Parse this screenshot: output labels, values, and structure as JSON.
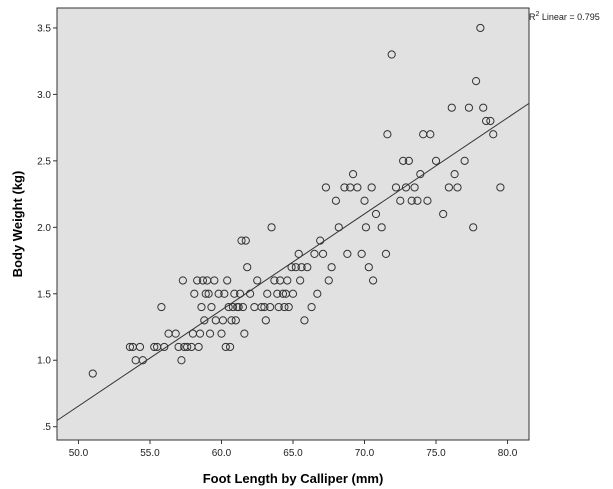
{
  "chart_data": {
    "type": "scatter",
    "title": "",
    "xlabel": "Foot Length by Calliper (mm)",
    "ylabel": "Body Weight (kg)",
    "xlim": [
      48.5,
      81.5
    ],
    "ylim": [
      0.4,
      3.65
    ],
    "x_ticks": [
      50.0,
      55.0,
      60.0,
      65.0,
      70.0,
      75.0,
      80.0
    ],
    "x_tick_labels": [
      "50.0",
      "55.0",
      "60.0",
      "65.0",
      "70.0",
      "75.0",
      "80.0"
    ],
    "y_ticks": [
      0.5,
      1.0,
      1.5,
      2.0,
      2.5,
      3.0,
      3.5
    ],
    "y_tick_labels": [
      ".5",
      "1.0",
      "1.5",
      "2.0",
      "2.5",
      "3.0",
      "3.5"
    ],
    "grid": false,
    "plot_background": "#e1e1e1",
    "marker_color": "#333333",
    "fit_line": {
      "label": "R² Linear = 0.795",
      "r2_prefix": "R",
      "r2_superscript": "2",
      "r2_suffix": " Linear = 0.795",
      "slope": 0.0723,
      "intercept": -2.96,
      "x_range": [
        48.5,
        81.5
      ]
    },
    "points": [
      [
        51.0,
        0.9
      ],
      [
        53.6,
        1.1
      ],
      [
        53.8,
        1.1
      ],
      [
        54.0,
        1.0
      ],
      [
        54.3,
        1.1
      ],
      [
        54.5,
        1.0
      ],
      [
        55.3,
        1.1
      ],
      [
        55.5,
        1.1
      ],
      [
        55.8,
        1.4
      ],
      [
        56.0,
        1.1
      ],
      [
        56.3,
        1.2
      ],
      [
        56.8,
        1.2
      ],
      [
        57.0,
        1.1
      ],
      [
        57.2,
        1.0
      ],
      [
        57.3,
        1.6
      ],
      [
        57.4,
        1.1
      ],
      [
        57.6,
        1.1
      ],
      [
        57.9,
        1.1
      ],
      [
        58.0,
        1.2
      ],
      [
        58.1,
        1.5
      ],
      [
        58.3,
        1.6
      ],
      [
        58.4,
        1.1
      ],
      [
        58.5,
        1.2
      ],
      [
        58.6,
        1.4
      ],
      [
        58.7,
        1.6
      ],
      [
        58.8,
        1.3
      ],
      [
        58.9,
        1.5
      ],
      [
        59.0,
        1.6
      ],
      [
        59.1,
        1.5
      ],
      [
        59.2,
        1.2
      ],
      [
        59.3,
        1.4
      ],
      [
        59.5,
        1.6
      ],
      [
        59.6,
        1.3
      ],
      [
        59.8,
        1.5
      ],
      [
        60.0,
        1.2
      ],
      [
        60.1,
        1.3
      ],
      [
        60.2,
        1.5
      ],
      [
        60.3,
        1.1
      ],
      [
        60.4,
        1.6
      ],
      [
        60.5,
        1.4
      ],
      [
        60.6,
        1.1
      ],
      [
        60.7,
        1.3
      ],
      [
        60.8,
        1.4
      ],
      [
        60.9,
        1.5
      ],
      [
        61.0,
        1.3
      ],
      [
        61.1,
        1.4
      ],
      [
        61.2,
        1.4
      ],
      [
        61.3,
        1.5
      ],
      [
        61.4,
        1.9
      ],
      [
        61.5,
        1.4
      ],
      [
        61.6,
        1.2
      ],
      [
        61.7,
        1.9
      ],
      [
        61.8,
        1.7
      ],
      [
        62.0,
        1.5
      ],
      [
        62.3,
        1.4
      ],
      [
        62.5,
        1.6
      ],
      [
        62.8,
        1.4
      ],
      [
        63.0,
        1.4
      ],
      [
        63.1,
        1.3
      ],
      [
        63.2,
        1.5
      ],
      [
        63.4,
        1.4
      ],
      [
        63.5,
        2.0
      ],
      [
        63.7,
        1.6
      ],
      [
        63.9,
        1.5
      ],
      [
        64.0,
        1.4
      ],
      [
        64.1,
        1.6
      ],
      [
        64.3,
        1.5
      ],
      [
        64.4,
        1.4
      ],
      [
        64.5,
        1.5
      ],
      [
        64.6,
        1.6
      ],
      [
        64.7,
        1.4
      ],
      [
        64.9,
        1.7
      ],
      [
        65.0,
        1.5
      ],
      [
        65.2,
        1.7
      ],
      [
        65.4,
        1.8
      ],
      [
        65.5,
        1.6
      ],
      [
        65.6,
        1.7
      ],
      [
        65.8,
        1.3
      ],
      [
        66.0,
        1.7
      ],
      [
        66.3,
        1.4
      ],
      [
        66.5,
        1.8
      ],
      [
        66.7,
        1.5
      ],
      [
        66.9,
        1.9
      ],
      [
        67.1,
        1.8
      ],
      [
        67.3,
        2.3
      ],
      [
        67.5,
        1.6
      ],
      [
        67.7,
        1.7
      ],
      [
        68.0,
        2.2
      ],
      [
        68.2,
        2.0
      ],
      [
        68.6,
        2.3
      ],
      [
        68.8,
        1.8
      ],
      [
        69.0,
        2.3
      ],
      [
        69.2,
        2.4
      ],
      [
        69.5,
        2.3
      ],
      [
        69.8,
        1.8
      ],
      [
        70.0,
        2.2
      ],
      [
        70.1,
        2.0
      ],
      [
        70.3,
        1.7
      ],
      [
        70.5,
        2.3
      ],
      [
        70.6,
        1.6
      ],
      [
        70.8,
        2.1
      ],
      [
        71.2,
        2.0
      ],
      [
        71.5,
        1.8
      ],
      [
        71.6,
        2.7
      ],
      [
        71.9,
        3.3
      ],
      [
        72.2,
        2.3
      ],
      [
        72.5,
        2.2
      ],
      [
        72.7,
        2.5
      ],
      [
        72.9,
        2.3
      ],
      [
        73.1,
        2.5
      ],
      [
        73.3,
        2.2
      ],
      [
        73.5,
        2.3
      ],
      [
        73.7,
        2.2
      ],
      [
        73.9,
        2.4
      ],
      [
        74.1,
        2.7
      ],
      [
        74.4,
        2.2
      ],
      [
        74.6,
        2.7
      ],
      [
        75.0,
        2.5
      ],
      [
        75.5,
        2.1
      ],
      [
        75.9,
        2.3
      ],
      [
        76.1,
        2.9
      ],
      [
        76.3,
        2.4
      ],
      [
        76.5,
        2.3
      ],
      [
        77.0,
        2.5
      ],
      [
        77.3,
        2.9
      ],
      [
        77.6,
        2.0
      ],
      [
        77.8,
        3.1
      ],
      [
        78.1,
        3.5
      ],
      [
        78.3,
        2.9
      ],
      [
        78.5,
        2.8
      ],
      [
        78.8,
        2.8
      ],
      [
        79.0,
        2.7
      ],
      [
        79.5,
        2.3
      ]
    ]
  }
}
